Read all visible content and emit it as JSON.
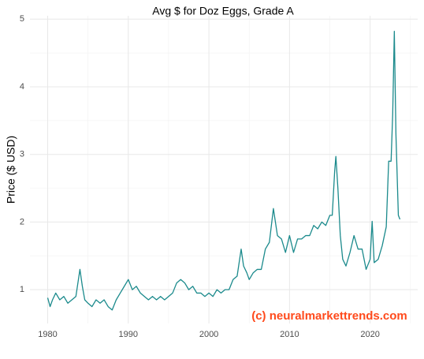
{
  "chart_data": {
    "type": "line",
    "title": "Avg $ for Doz Eggs, Grade A",
    "y_label": "Price ($ USD)",
    "annotation": "(c) neuralmarkettrends.com",
    "x": [
      1980,
      1980.3,
      1980.6,
      1981,
      1981.5,
      1982,
      1982.5,
      1983,
      1983.5,
      1984,
      1984.3,
      1984.6,
      1985,
      1985.5,
      1986,
      1986.5,
      1987,
      1987.5,
      1988,
      1988.5,
      1989,
      1989.5,
      1990,
      1990.5,
      1991,
      1991.5,
      1992,
      1992.5,
      1993,
      1993.5,
      1994,
      1994.5,
      1995,
      1995.5,
      1996,
      1996.5,
      1997,
      1997.5,
      1998,
      1998.5,
      1999,
      1999.5,
      2000,
      2000.5,
      2001,
      2001.5,
      2002,
      2002.5,
      2003,
      2003.5,
      2004,
      2004.3,
      2004.7,
      2005,
      2005.5,
      2006,
      2006.5,
      2007,
      2007.5,
      2008,
      2008.5,
      2009,
      2009.5,
      2010,
      2010.5,
      2011,
      2011.5,
      2012,
      2012.5,
      2013,
      2013.5,
      2014,
      2014.5,
      2015,
      2015.3,
      2015.6,
      2015.75,
      2016,
      2016.3,
      2016.6,
      2017,
      2017.5,
      2018,
      2018.5,
      2019,
      2019.5,
      2020,
      2020.25,
      2020.5,
      2021,
      2021.5,
      2022,
      2022.3,
      2022.6,
      2022.8,
      2023,
      2023.2,
      2023.5,
      2023.7
    ],
    "series": [
      {
        "name": "Price",
        "color": "#1b8a8c",
        "values": [
          0.88,
          0.75,
          0.85,
          0.95,
          0.85,
          0.9,
          0.8,
          0.85,
          0.9,
          1.3,
          1.05,
          0.85,
          0.8,
          0.75,
          0.85,
          0.8,
          0.85,
          0.75,
          0.7,
          0.85,
          0.95,
          1.05,
          1.15,
          1.0,
          1.05,
          0.95,
          0.9,
          0.85,
          0.9,
          0.85,
          0.9,
          0.85,
          0.9,
          0.95,
          1.1,
          1.15,
          1.1,
          1.0,
          1.05,
          0.95,
          0.95,
          0.9,
          0.95,
          0.9,
          1.0,
          0.95,
          1.0,
          1.0,
          1.15,
          1.2,
          1.6,
          1.35,
          1.25,
          1.15,
          1.25,
          1.3,
          1.3,
          1.6,
          1.7,
          2.2,
          1.8,
          1.75,
          1.55,
          1.8,
          1.55,
          1.75,
          1.75,
          1.8,
          1.8,
          1.95,
          1.9,
          2.0,
          1.95,
          2.1,
          2.1,
          2.75,
          2.97,
          2.5,
          1.8,
          1.45,
          1.35,
          1.55,
          1.8,
          1.6,
          1.6,
          1.3,
          1.45,
          2.01,
          1.4,
          1.45,
          1.65,
          1.93,
          2.9,
          2.9,
          3.6,
          4.82,
          3.3,
          2.1,
          2.04
        ]
      }
    ],
    "xlim": [
      1977.8,
      2025.9
    ],
    "xticks": [
      1980,
      1990,
      2000,
      2010,
      2020
    ],
    "xticks_minor": [
      1985,
      1995,
      2005,
      2015,
      2025
    ],
    "ylim": [
      0.5,
      5.05
    ],
    "yticks": [
      1,
      2,
      3,
      4,
      5
    ],
    "yticks_minor": [
      1.5,
      2.5,
      3.5,
      4.5
    ],
    "grid": true
  }
}
